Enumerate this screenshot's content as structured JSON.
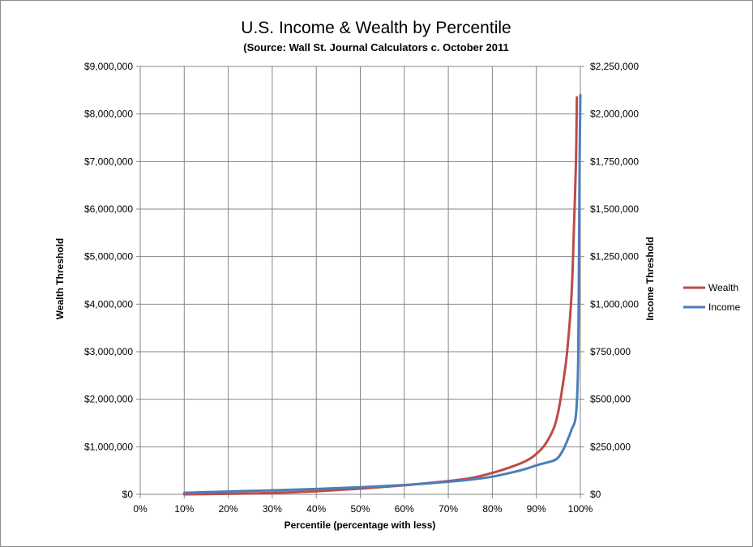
{
  "chart_data": {
    "type": "line",
    "title": "U.S. Income & Wealth by Percentile",
    "subtitle": "(Source: Wall St. Journal Calculators c. October 2011",
    "xlabel": "Percentile (percentage with less)",
    "ylabel": "Wealth Threshold",
    "y2label": "Income Threshold",
    "x_ticks": [
      "0%",
      "10%",
      "20%",
      "30%",
      "40%",
      "50%",
      "60%",
      "70%",
      "80%",
      "90%",
      "100%"
    ],
    "xlim": [
      0,
      100
    ],
    "ylim": [
      0,
      9000000
    ],
    "y2lim": [
      0,
      2250000
    ],
    "y_ticks": [
      "$0",
      "$1,000,000",
      "$2,000,000",
      "$3,000,000",
      "$4,000,000",
      "$5,000,000",
      "$6,000,000",
      "$7,000,000",
      "$8,000,000",
      "$9,000,000"
    ],
    "y2_ticks": [
      "$0",
      "$250,000",
      "$500,000",
      "$750,000",
      "$1,000,000",
      "$1,250,000",
      "$1,500,000",
      "$1,750,000",
      "$2,000,000",
      "$2,250,000"
    ],
    "grid": true,
    "legend_position": "right",
    "series": [
      {
        "name": "Wealth",
        "axis": "left",
        "color": "#be4b48",
        "points": [
          [
            10,
            0
          ],
          [
            20,
            10000
          ],
          [
            30,
            30000
          ],
          [
            40,
            65000
          ],
          [
            50,
            120000
          ],
          [
            60,
            190000
          ],
          [
            70,
            280000
          ],
          [
            75,
            340000
          ],
          [
            80,
            450000
          ],
          [
            85,
            600000
          ],
          [
            88,
            720000
          ],
          [
            90,
            850000
          ],
          [
            92,
            1050000
          ],
          [
            94,
            1400000
          ],
          [
            95,
            1750000
          ],
          [
            96,
            2300000
          ],
          [
            97,
            3000000
          ],
          [
            98,
            4200000
          ],
          [
            98.5,
            5500000
          ],
          [
            99,
            7000000
          ],
          [
            99.2,
            8350000
          ]
        ]
      },
      {
        "name": "Income",
        "axis": "right",
        "color": "#4a7ebb",
        "points": [
          [
            10,
            8000
          ],
          [
            20,
            15000
          ],
          [
            30,
            21000
          ],
          [
            40,
            28000
          ],
          [
            50,
            37000
          ],
          [
            60,
            49000
          ],
          [
            70,
            66000
          ],
          [
            75,
            77000
          ],
          [
            80,
            93000
          ],
          [
            85,
            118000
          ],
          [
            88,
            137000
          ],
          [
            90,
            152000
          ],
          [
            92,
            165000
          ],
          [
            94,
            178000
          ],
          [
            95,
            195000
          ],
          [
            96,
            230000
          ],
          [
            97,
            280000
          ],
          [
            98,
            340000
          ],
          [
            99,
            420000
          ],
          [
            99.5,
            700000
          ],
          [
            99.7,
            1300000
          ],
          [
            99.85,
            1800000
          ],
          [
            100,
            2100000
          ]
        ]
      }
    ]
  }
}
